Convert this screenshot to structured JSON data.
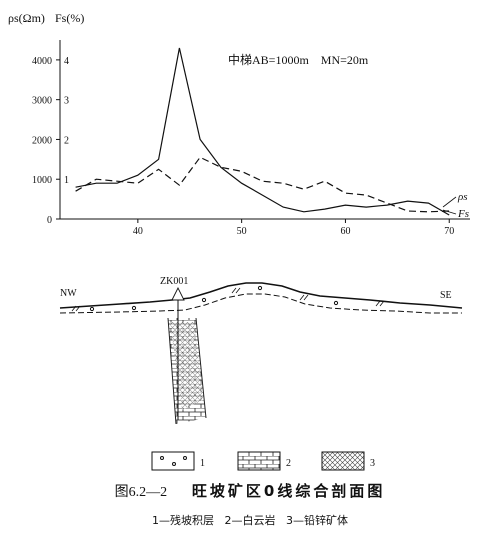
{
  "chart_data": {
    "type": "line",
    "annotation": "中梯AB=1000m    MN=20m",
    "y_left_label": "ρs(Ωm)",
    "y_right_label": "Fs(%)",
    "x": [
      34,
      36,
      38,
      40,
      42,
      44,
      46,
      48,
      50,
      52,
      54,
      56,
      58,
      60,
      62,
      64,
      66,
      68,
      70
    ],
    "x_ticks": [
      40,
      50,
      60,
      70
    ],
    "xlim": [
      32.5,
      72
    ],
    "y_left_ticks": [
      0,
      1000,
      2000,
      3000,
      4000
    ],
    "y_left_lim": [
      0,
      4500
    ],
    "y_right_ticks": [
      1,
      2,
      3,
      4
    ],
    "series": [
      {
        "name": "ρs",
        "axis": "left",
        "style": "solid",
        "values": [
          800,
          900,
          900,
          1100,
          1500,
          4300,
          2000,
          1300,
          900,
          600,
          300,
          180,
          250,
          350,
          300,
          350,
          450,
          400,
          100
        ]
      },
      {
        "name": "Fs",
        "axis": "right",
        "style": "dashed",
        "values": [
          700,
          1000,
          950,
          900,
          1250,
          850,
          1550,
          1300,
          1200,
          950,
          900,
          750,
          950,
          650,
          600,
          400,
          200,
          180,
          200
        ]
      }
    ]
  },
  "section": {
    "left_label": "NW",
    "right_label": "SE",
    "borehole_label": "ZK001"
  },
  "legend": [
    {
      "num": "1",
      "pattern": "residual-slope"
    },
    {
      "num": "2",
      "pattern": "dolomite"
    },
    {
      "num": "3",
      "pattern": "lead-zinc-ore"
    }
  ],
  "caption": {
    "figure_number": "图6.2—2",
    "title": "旺坡矿区0线综合剖面图",
    "legend_text": "1—残坡积层   2—白云岩   3—铅锌矿体"
  }
}
